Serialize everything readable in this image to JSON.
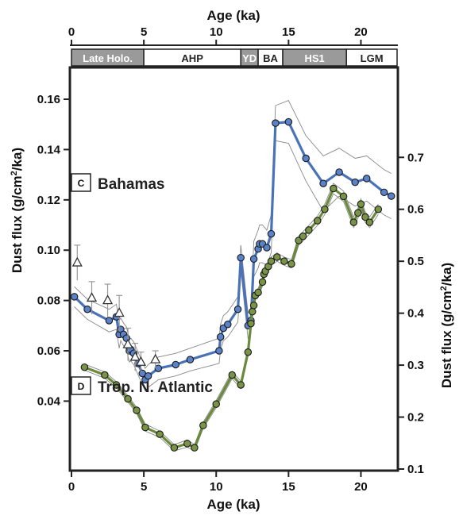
{
  "chart_data": {
    "type": "line",
    "x_axis": {
      "label": "Age (ka)",
      "range": [
        0,
        22.5
      ],
      "ticks": [
        "0",
        "5",
        "10",
        "15",
        "20"
      ],
      "top_label": "Age (ka)",
      "top_ticks": [
        "0",
        "5",
        "10",
        "15",
        "20"
      ]
    },
    "y_left": {
      "label": "Dust flux (g/cm",
      "label_sup": "2",
      "label_end": "/ka)",
      "range": [
        0.013,
        0.172
      ],
      "ticks": [
        "0.04",
        "0.06",
        "0.08",
        "0.10",
        "0.12",
        "0.14",
        "0.16"
      ]
    },
    "y_right": {
      "label": "Dust flux (g/cm",
      "label_sup": "2",
      "label_end": "/ka)",
      "range": [
        0.1,
        0.87
      ],
      "ticks": [
        "0.1",
        "0.2",
        "0.3",
        "0.4",
        "0.5",
        "0.6",
        "0.7"
      ]
    },
    "periods": [
      {
        "label": "Late Holo.",
        "start": 0,
        "end": 5,
        "shaded": true
      },
      {
        "label": "AHP",
        "start": 5,
        "end": 11.7,
        "shaded": false
      },
      {
        "label": "YD",
        "start": 11.7,
        "end": 12.9,
        "shaded": true
      },
      {
        "label": "BA",
        "start": 12.9,
        "end": 14.6,
        "shaded": false
      },
      {
        "label": "HS1",
        "start": 14.6,
        "end": 19.0,
        "shaded": true
      },
      {
        "label": "LGM",
        "start": 19.0,
        "end": 22.5,
        "shaded": false
      }
    ],
    "panels": [
      {
        "letter": "C",
        "title": "Bahamas"
      },
      {
        "letter": "D",
        "title": "Trop. N. Atlantic"
      }
    ],
    "series": [
      {
        "axis": "left",
        "color": "#4a72b8",
        "marker_fill": "#5b82c8",
        "x": [
          0.2,
          1.1,
          2.6,
          3.1,
          3.3,
          3.4,
          3.6,
          3.8,
          4.0,
          4.1,
          4.3,
          4.6,
          4.9,
          5.1,
          5.3,
          6.0,
          7.2,
          8.2,
          10.2,
          10.3,
          10.5,
          10.8,
          11.5,
          11.7,
          12.2,
          12.4,
          12.6,
          12.9,
          13.0,
          13.2,
          13.5,
          13.8,
          14.1,
          15.0,
          16.2,
          17.4,
          18.5,
          19.6,
          20.4,
          21.6,
          22.1
        ],
        "y": [
          0.0815,
          0.0765,
          0.072,
          0.0735,
          0.0665,
          0.0685,
          0.0665,
          0.065,
          0.06,
          0.0605,
          0.059,
          0.055,
          0.051,
          0.0485,
          0.05,
          0.053,
          0.0545,
          0.0565,
          0.06,
          0.0655,
          0.069,
          0.0705,
          0.0765,
          0.097,
          0.07,
          0.072,
          0.0965,
          0.1005,
          0.1025,
          0.1025,
          0.101,
          0.1065,
          0.1505,
          0.151,
          0.1365,
          0.1265,
          0.131,
          0.127,
          0.1285,
          0.123,
          0.1215
        ],
        "upper": [
          0.0855,
          0.0805,
          0.0765,
          0.0785,
          0.072,
          0.073,
          0.071,
          0.0695,
          0.0645,
          0.065,
          0.0635,
          0.0595,
          0.0555,
          0.053,
          0.0545,
          0.0575,
          0.059,
          0.061,
          0.065,
          0.0705,
          0.074,
          0.0755,
          0.0815,
          0.102,
          0.075,
          0.077,
          0.1035,
          0.108,
          0.11,
          0.11,
          0.108,
          0.114,
          0.1575,
          0.1595,
          0.1455,
          0.1375,
          0.1405,
          0.1365,
          0.1375,
          0.132,
          0.1305
        ],
        "lower": [
          0.0775,
          0.0725,
          0.0675,
          0.0685,
          0.061,
          0.064,
          0.062,
          0.0605,
          0.0555,
          0.056,
          0.0545,
          0.0505,
          0.0465,
          0.044,
          0.0455,
          0.0485,
          0.05,
          0.052,
          0.055,
          0.0605,
          0.064,
          0.0655,
          0.0715,
          0.092,
          0.065,
          0.067,
          0.0895,
          0.093,
          0.095,
          0.095,
          0.094,
          0.099,
          0.1435,
          0.1425,
          0.1275,
          0.1155,
          0.1215,
          0.1175,
          0.1195,
          0.114,
          0.1125
        ]
      },
      {
        "axis": "left",
        "marker": "triangle",
        "x": [
          0.4,
          1.4,
          2.5,
          3.3,
          3.9,
          4.4,
          4.8,
          5.8
        ],
        "y": [
          0.095,
          0.081,
          0.08,
          0.075,
          0.0625,
          0.0575,
          0.0555,
          0.0565
        ],
        "err": [
          0.007,
          0.0065,
          0.0065,
          0.007,
          0.0065,
          0.0055,
          0.004,
          0.0035
        ]
      },
      {
        "axis": "right",
        "color": "#6b8a3c",
        "marker_fill": "#7a9447",
        "x": [
          0.9,
          2.3,
          3.1,
          3.9,
          4.5,
          5.1,
          6.1,
          7.1,
          8.0,
          8.5,
          9.1,
          10.0,
          11.1,
          11.7,
          12.2,
          12.4,
          12.5,
          12.6,
          12.7,
          12.9,
          13.2,
          13.3,
          13.4,
          13.6,
          13.8,
          14.2,
          14.7,
          15.2,
          15.7,
          16.0,
          16.4,
          17.0,
          17.5,
          18.1,
          18.8,
          19.5,
          19.8,
          20.0,
          20.3,
          20.6,
          21.2
        ],
        "y": [
          0.296,
          0.281,
          0.262,
          0.235,
          0.213,
          0.18,
          0.167,
          0.141,
          0.149,
          0.141,
          0.184,
          0.225,
          0.281,
          0.262,
          0.325,
          0.38,
          0.403,
          0.415,
          0.434,
          0.44,
          0.46,
          0.475,
          0.481,
          0.49,
          0.5,
          0.508,
          0.5,
          0.495,
          0.54,
          0.548,
          0.56,
          0.578,
          0.6,
          0.64,
          0.625,
          0.575,
          0.593,
          0.61,
          0.585,
          0.575,
          0.6
        ],
        "upper": [
          0.302,
          0.287,
          0.268,
          0.241,
          0.219,
          0.187,
          0.173,
          0.147,
          0.156,
          0.147,
          0.19,
          0.232,
          0.288,
          0.269,
          0.333,
          0.388,
          0.411,
          0.423,
          0.442,
          0.448,
          0.468,
          0.483,
          0.489,
          0.498,
          0.508,
          0.516,
          0.508,
          0.503,
          0.549,
          0.557,
          0.569,
          0.587,
          0.61,
          0.65,
          0.635,
          0.585,
          0.603,
          0.62,
          0.595,
          0.585,
          0.61
        ],
        "lower": [
          0.29,
          0.275,
          0.256,
          0.229,
          0.207,
          0.173,
          0.161,
          0.135,
          0.142,
          0.135,
          0.178,
          0.218,
          0.274,
          0.255,
          0.317,
          0.372,
          0.395,
          0.407,
          0.426,
          0.432,
          0.452,
          0.467,
          0.473,
          0.482,
          0.492,
          0.5,
          0.492,
          0.487,
          0.531,
          0.539,
          0.551,
          0.569,
          0.59,
          0.63,
          0.615,
          0.565,
          0.583,
          0.6,
          0.575,
          0.565,
          0.59
        ]
      }
    ]
  }
}
